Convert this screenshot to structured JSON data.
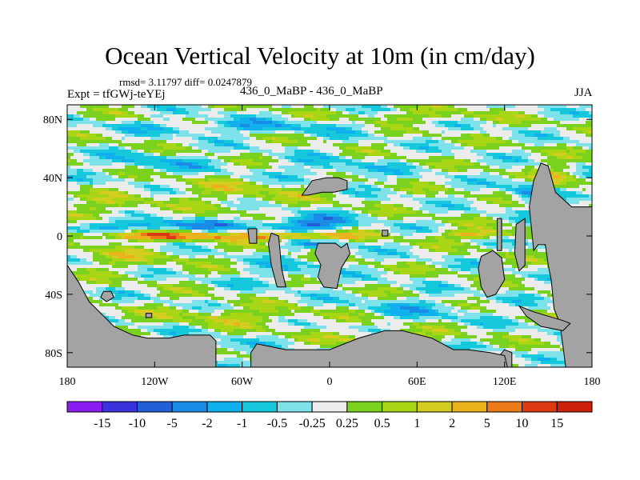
{
  "chart_data": {
    "type": "heatmap",
    "title": "Ocean Vertical Velocity at 10m (in cm/day)",
    "stats": "rmsd= 3.11797 diff= 0.0247879",
    "experiment": "Expt = tfGWj-teYEj",
    "run": "436_0_MaBP - 436_0_MaBP",
    "season": "JJA",
    "xlim": [
      -180,
      180
    ],
    "ylim": [
      -90,
      90
    ],
    "x_ticks": [
      {
        "value": -180,
        "label": "180"
      },
      {
        "value": -120,
        "label": "120W"
      },
      {
        "value": -60,
        "label": "60W"
      },
      {
        "value": 0,
        "label": "0"
      },
      {
        "value": 60,
        "label": "60E"
      },
      {
        "value": 120,
        "label": "120E"
      },
      {
        "value": 180,
        "label": "180"
      }
    ],
    "y_ticks": [
      {
        "value": 80,
        "label": "80N"
      },
      {
        "value": 40,
        "label": "40N"
      },
      {
        "value": 0,
        "label": "0"
      },
      {
        "value": -40,
        "label": "40S"
      },
      {
        "value": -80,
        "label": "80S"
      }
    ],
    "colorbar": {
      "levels": [
        "-15",
        "-10",
        "-5",
        "-2",
        "-1",
        "-0.5",
        "-0.25",
        "0.25",
        "0.5",
        "1",
        "2",
        "5",
        "10",
        "15"
      ],
      "colors": [
        "#8a1df0",
        "#3a33dc",
        "#2360d8",
        "#1a8ce8",
        "#10b0ee",
        "#16c8dc",
        "#7ee2ea",
        "#ececec",
        "#7ad21e",
        "#a8d614",
        "#d4cc1e",
        "#ecb21e",
        "#ec7a18",
        "#dc3a10",
        "#cc2008"
      ]
    },
    "land_color": "#a3a3a3",
    "fields": [
      {
        "lat": 0,
        "lon": -120,
        "dlat": 3,
        "dlon": 60,
        "amp": 1.2
      },
      {
        "lat": 0,
        "lon": -20,
        "dlat": 3,
        "dlon": 40,
        "amp": 1.4
      },
      {
        "lat": 1,
        "lon": 100,
        "dlat": 3,
        "dlon": 25,
        "amp": 1.0
      },
      {
        "lat": 7,
        "lon": -120,
        "dlat": 4,
        "dlon": 60,
        "amp": -0.9
      },
      {
        "lat": 8,
        "lon": -15,
        "dlat": 6,
        "dlon": 30,
        "amp": -1.1
      },
      {
        "lat": -6,
        "lon": -10,
        "dlat": 4,
        "dlon": 20,
        "amp": -0.6
      },
      {
        "lat": 75,
        "lon": -60,
        "dlat": 5,
        "dlon": 80,
        "amp": -0.55
      },
      {
        "lat": 82,
        "lon": 60,
        "dlat": 4,
        "dlon": 50,
        "amp": 0.45
      },
      {
        "lat": 50,
        "lon": -120,
        "dlat": 7,
        "dlon": 40,
        "amp": -0.45
      },
      {
        "lat": 45,
        "lon": 0,
        "dlat": 8,
        "dlon": 40,
        "amp": -0.45
      },
      {
        "lat": 30,
        "lon": -60,
        "dlat": 10,
        "dlon": 50,
        "amp": 0.4
      },
      {
        "lat": 20,
        "lon": -150,
        "dlat": 8,
        "dlon": 30,
        "amp": 0.4
      },
      {
        "lat": -15,
        "lon": -140,
        "dlat": 8,
        "dlon": 40,
        "amp": 0.4
      },
      {
        "lat": -25,
        "lon": -30,
        "dlat": 8,
        "dlon": 30,
        "amp": -0.4
      },
      {
        "lat": -55,
        "lon": -60,
        "dlat": 6,
        "dlon": 60,
        "amp": 0.5
      },
      {
        "lat": -50,
        "lon": 60,
        "dlat": 8,
        "dlon": 50,
        "amp": -0.4
      },
      {
        "lat": -75,
        "lon": -100,
        "dlat": 5,
        "dlon": 40,
        "amp": -0.5
      },
      {
        "lat": -70,
        "lon": 40,
        "dlat": 5,
        "dlon": 40,
        "amp": 0.5
      },
      {
        "lat": 30,
        "lon": 140,
        "dlat": 8,
        "dlon": 15,
        "amp": -0.9
      },
      {
        "lat": 40,
        "lon": 155,
        "dlat": 10,
        "dlon": 15,
        "amp": 0.6
      }
    ],
    "land": [
      [
        [
          -180,
          -20
        ],
        [
          -172,
          -32
        ],
        [
          -165,
          -45
        ],
        [
          -155,
          -55
        ],
        [
          -148,
          -62
        ],
        [
          -135,
          -68
        ],
        [
          -125,
          -70
        ],
        [
          -110,
          -70
        ],
        [
          -100,
          -68
        ],
        [
          -82,
          -68
        ],
        [
          -78,
          -72
        ],
        [
          -78,
          -90
        ],
        [
          -180,
          -90
        ]
      ],
      [
        [
          -155,
          -38
        ],
        [
          -150,
          -38
        ],
        [
          -148,
          -42
        ],
        [
          -153,
          -45
        ],
        [
          -157,
          -42
        ]
      ],
      [
        [
          -126,
          -53
        ],
        [
          -122,
          -53
        ],
        [
          -122,
          -56
        ],
        [
          -126,
          -56
        ]
      ],
      [
        [
          -56,
          5
        ],
        [
          -50,
          5
        ],
        [
          -50,
          -5
        ],
        [
          -55,
          -5
        ]
      ],
      [
        [
          -40,
          2
        ],
        [
          -35,
          0
        ],
        [
          -34,
          -10
        ],
        [
          -33,
          -22
        ],
        [
          -30,
          -35
        ],
        [
          -36,
          -35
        ],
        [
          -40,
          -20
        ],
        [
          -42,
          -5
        ]
      ],
      [
        [
          -19,
          28
        ],
        [
          -12,
          38
        ],
        [
          -2,
          40
        ],
        [
          6,
          40
        ],
        [
          12,
          38
        ],
        [
          12,
          32
        ],
        [
          3,
          30
        ],
        [
          -5,
          30
        ],
        [
          -15,
          28
        ]
      ],
      [
        [
          -8,
          -5
        ],
        [
          4,
          -5
        ],
        [
          8,
          -8
        ],
        [
          12,
          -5
        ],
        [
          14,
          -12
        ],
        [
          8,
          -22
        ],
        [
          5,
          -36
        ],
        [
          -4,
          -35
        ],
        [
          -8,
          -28
        ],
        [
          -6,
          -20
        ],
        [
          -10,
          -12
        ]
      ],
      [
        [
          36,
          4
        ],
        [
          40,
          4
        ],
        [
          40,
          0
        ],
        [
          36,
          0
        ]
      ],
      [
        [
          115,
          12
        ],
        [
          118,
          12
        ],
        [
          118,
          -10
        ],
        [
          115,
          -10
        ]
      ],
      [
        [
          104,
          -14
        ],
        [
          112,
          -10
        ],
        [
          118,
          -15
        ],
        [
          120,
          -30
        ],
        [
          114,
          -40
        ],
        [
          108,
          -42
        ],
        [
          104,
          -35
        ],
        [
          102,
          -22
        ]
      ],
      [
        [
          128,
          8
        ],
        [
          134,
          12
        ],
        [
          134,
          -20
        ],
        [
          130,
          -24
        ],
        [
          127,
          -12
        ]
      ],
      [
        [
          140,
          -10
        ],
        [
          143,
          -6
        ],
        [
          148,
          -6
        ],
        [
          150,
          -20
        ],
        [
          152,
          -30
        ],
        [
          154,
          -50
        ],
        [
          158,
          -60
        ],
        [
          162,
          -90
        ],
        [
          180,
          -90
        ],
        [
          180,
          20
        ],
        [
          166,
          20
        ],
        [
          155,
          30
        ],
        [
          150,
          48
        ],
        [
          145,
          50
        ],
        [
          140,
          38
        ],
        [
          137,
          20
        ]
      ],
      [
        [
          130,
          -48
        ],
        [
          140,
          -52
        ],
        [
          160,
          -58
        ],
        [
          165,
          -60
        ],
        [
          160,
          -65
        ],
        [
          145,
          -62
        ],
        [
          135,
          -55
        ]
      ],
      [
        [
          120,
          -78
        ],
        [
          125,
          -80
        ],
        [
          125,
          -90
        ],
        [
          110,
          -90
        ]
      ],
      [
        [
          -54,
          -80
        ],
        [
          -50,
          -74
        ],
        [
          -30,
          -78
        ],
        [
          0,
          -78
        ],
        [
          20,
          -70
        ],
        [
          38,
          -65
        ],
        [
          50,
          -65
        ],
        [
          70,
          -70
        ],
        [
          85,
          -78
        ],
        [
          95,
          -78
        ],
        [
          110,
          -80
        ],
        [
          120,
          -82
        ],
        [
          122,
          -90
        ],
        [
          -54,
          -90
        ]
      ]
    ]
  }
}
